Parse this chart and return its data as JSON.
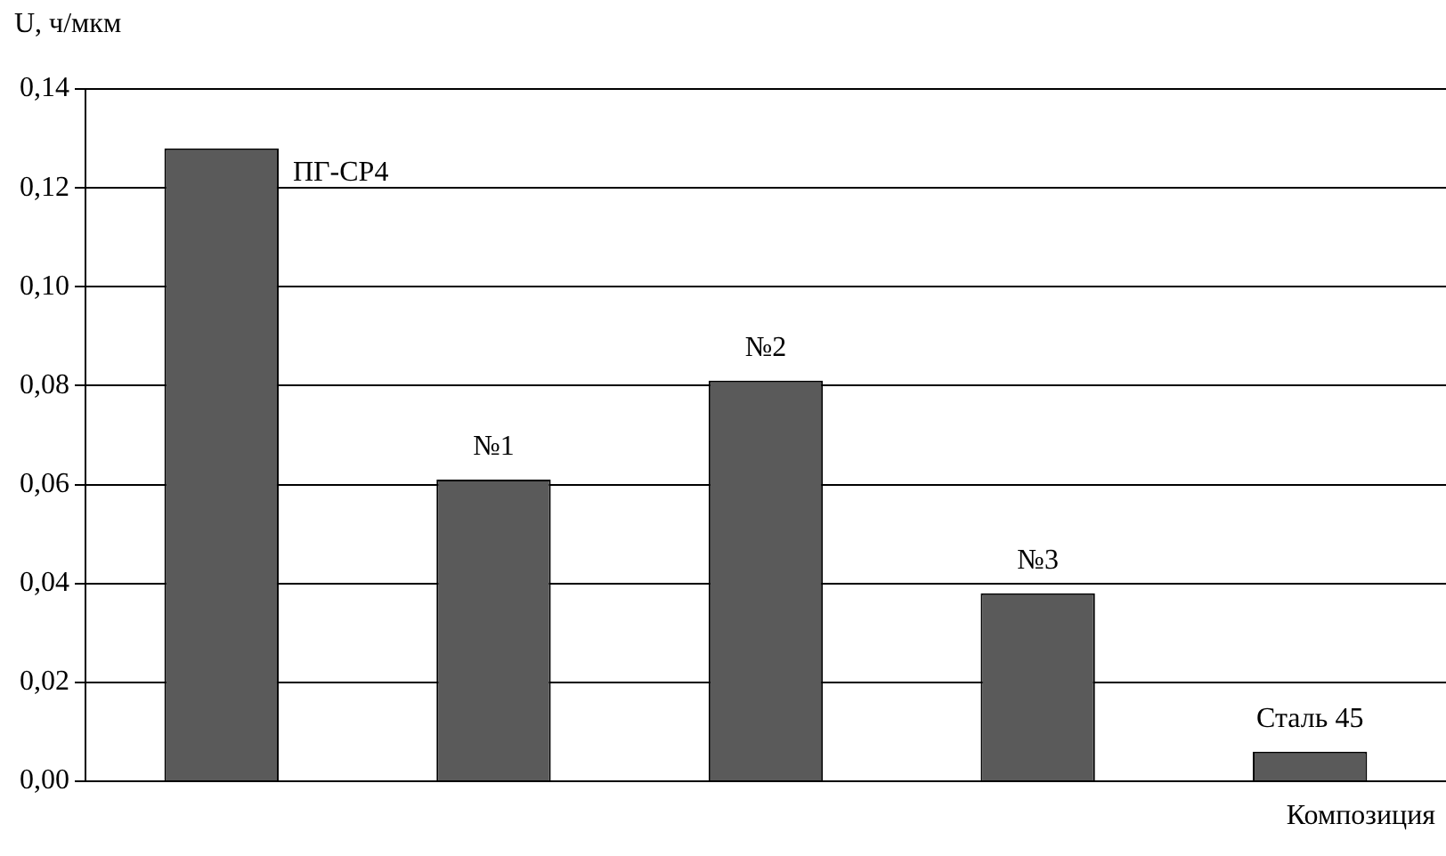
{
  "chart_data": {
    "type": "bar",
    "ylabel": "U, ч/мкм",
    "xlabel": "Композиция",
    "categories": [
      "ПГ-СР4",
      "№1",
      "№2",
      "№3",
      "Сталь 45"
    ],
    "values": [
      0.128,
      0.061,
      0.081,
      0.038,
      0.006
    ],
    "color": "#5a5a5a",
    "ylim": [
      0,
      0.14
    ],
    "yticks": [
      {
        "value": 0,
        "label": "0,00"
      },
      {
        "value": 0.02,
        "label": "0,02"
      },
      {
        "value": 0.04,
        "label": "0,04"
      },
      {
        "value": 0.06,
        "label": "0,06"
      },
      {
        "value": 0.08,
        "label": "0,08"
      },
      {
        "value": 0.1,
        "label": "0,10"
      },
      {
        "value": 0.12,
        "label": "0,12"
      },
      {
        "value": 0.14,
        "label": "0,14"
      }
    ],
    "grid": "y",
    "tick_labels": "y"
  }
}
